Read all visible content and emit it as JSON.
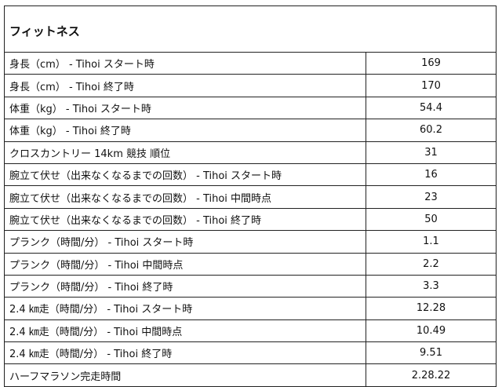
{
  "title": "フィットネス",
  "rows": [
    {
      "label": "身長（cm） -  Tihoi  スタート時",
      "value": "169"
    },
    {
      "label": "身長（cm） -  Tihoi  終了時",
      "value": "170"
    },
    {
      "label": "体重（kg） -  Tihoi  スタート時",
      "value": "54.4"
    },
    {
      "label": "体重（kg） -  Tihoi  終了時",
      "value": "60.2"
    },
    {
      "label": "クロスカントリー  14km 競技  順位",
      "value": "31"
    },
    {
      "label": "腕立て伏せ（出来なくなるまでの回数） -  Tihoi  スタート時",
      "value": "16"
    },
    {
      "label": "腕立て伏せ（出来なくなるまでの回数） -  Tihoi  中間時点",
      "value": "23"
    },
    {
      "label": "腕立て伏せ（出来なくなるまでの回数） -  Tihoi  終了時",
      "value": "50"
    },
    {
      "label": "プランク（時間/分） -  Tihoi  スタート時",
      "value": "1.1"
    },
    {
      "label": "プランク（時間/分） -  Tihoi  中間時点",
      "value": "2.2"
    },
    {
      "label": "プランク（時間/分） -  Tihoi  終了時",
      "value": "3.3"
    },
    {
      "label": "2.4 ㎞走（時間/分） -  Tihoi  スタート時",
      "value": "12.28"
    },
    {
      "label": "2.4 ㎞走（時間/分） -  Tihoi  中間時点",
      "value": "10.49"
    },
    {
      "label": "2.4 ㎞走（時間/分） -  Tihoi  終了時",
      "value": "9.51"
    },
    {
      "label": "ハーフマラソン完走時間",
      "value": "2.28.22"
    }
  ]
}
